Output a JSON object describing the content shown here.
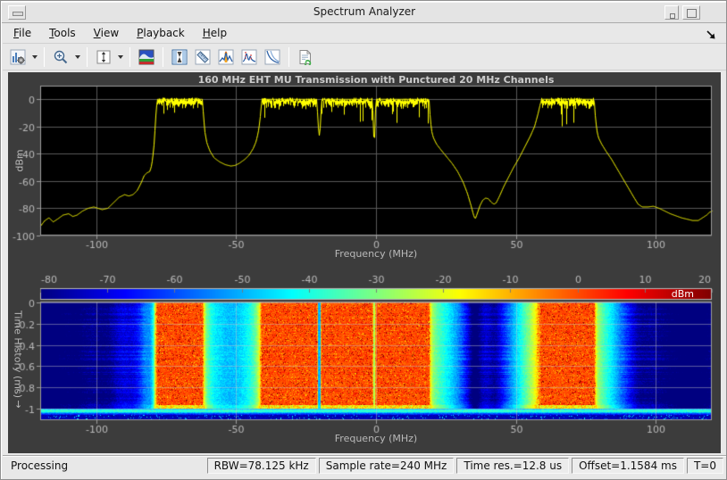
{
  "window": {
    "title": "Spectrum Analyzer"
  },
  "menubar": {
    "items": [
      {
        "label": "File",
        "mnemonic": 0
      },
      {
        "label": "Tools",
        "mnemonic": 0
      },
      {
        "label": "View",
        "mnemonic": 0
      },
      {
        "label": "Playback",
        "mnemonic": 0
      },
      {
        "label": "Help",
        "mnemonic": 0
      }
    ]
  },
  "toolbar": {
    "buttons": [
      {
        "name": "spectrum-settings",
        "has_dropdown": true
      },
      {
        "name": "zoom-in",
        "has_dropdown": true
      },
      {
        "name": "span",
        "has_dropdown": true
      },
      {
        "name": "spectrogram-view",
        "has_dropdown": false
      },
      {
        "name": "cursor-measurements",
        "has_dropdown": false
      },
      {
        "name": "ruler-measurements",
        "has_dropdown": false
      },
      {
        "name": "peak-finder",
        "has_dropdown": false
      },
      {
        "name": "distortion-measurements",
        "has_dropdown": false
      },
      {
        "name": "ccdf-measurements",
        "has_dropdown": false
      },
      {
        "name": "export-report",
        "has_dropdown": false
      }
    ]
  },
  "status": {
    "state": "Processing",
    "panels": [
      "RBW=78.125 kHz",
      "Sample rate=240 MHz",
      "Time res.=12.8 us",
      "Offset=1.1584 ms",
      "T=0"
    ]
  },
  "layout_colors": {
    "panel_bg": "#3c3c3c",
    "plot_bg": "#000000",
    "grid": "#5a5a5a",
    "axis_border": "#9c9c9c",
    "tick_label": "#b9b9b9",
    "trace": "#ffff00",
    "title_text": "#cccccc",
    "chrome_bg": "#e8e8e8"
  },
  "chart_data": [
    {
      "type": "line",
      "title": "160 MHz EHT MU Transmission with Punctured 20 MHz Channels",
      "xlabel": "Frequency (MHz)",
      "ylabel": "dBm",
      "xlim": [
        -120,
        120
      ],
      "ylim": [
        -100,
        10
      ],
      "xticks": [
        -100,
        -50,
        0,
        50,
        100
      ],
      "yticks": [
        0,
        -20,
        -40,
        -60,
        -80,
        -100
      ],
      "grid": true,
      "trace_color": "#ffff00",
      "noise_db": 3.5,
      "flat_segments": [
        [
          -78.3,
          -62.2
        ],
        [
          -41,
          -21.3
        ],
        [
          -19.6,
          -1.4
        ],
        [
          -0.2,
          18.8
        ],
        [
          59,
          77.8
        ]
      ],
      "envelope": [
        [
          -120,
          -93
        ],
        [
          -118.5,
          -89
        ],
        [
          -117,
          -87
        ],
        [
          -115.5,
          -90
        ],
        [
          -114,
          -88
        ],
        [
          -112,
          -85
        ],
        [
          -110,
          -84
        ],
        [
          -108.5,
          -86
        ],
        [
          -107,
          -85
        ],
        [
          -105,
          -82
        ],
        [
          -103,
          -80
        ],
        [
          -101,
          -79
        ],
        [
          -99.5,
          -80
        ],
        [
          -98,
          -81
        ],
        [
          -96,
          -80
        ],
        [
          -94,
          -76
        ],
        [
          -92,
          -72
        ],
        [
          -90,
          -70
        ],
        [
          -88.5,
          -71
        ],
        [
          -87,
          -70
        ],
        [
          -85.5,
          -67
        ],
        [
          -84,
          -61
        ],
        [
          -83,
          -56
        ],
        [
          -82,
          -54
        ],
        [
          -81,
          -53
        ],
        [
          -80.5,
          -50
        ],
        [
          -80,
          -44
        ],
        [
          -79.4,
          -32
        ],
        [
          -78.9,
          -14
        ],
        [
          -78.5,
          -4
        ],
        [
          -78.3,
          0
        ],
        [
          -62.2,
          0
        ],
        [
          -61.8,
          -12
        ],
        [
          -61.3,
          -24
        ],
        [
          -60.6,
          -32
        ],
        [
          -59.5,
          -38
        ],
        [
          -58,
          -43
        ],
        [
          -56,
          -46
        ],
        [
          -54,
          -48
        ],
        [
          -52,
          -49
        ],
        [
          -50.5,
          -48.5
        ],
        [
          -49,
          -47
        ],
        [
          -47,
          -44
        ],
        [
          -45.5,
          -41
        ],
        [
          -44,
          -36
        ],
        [
          -43,
          -31
        ],
        [
          -42.2,
          -24
        ],
        [
          -41.6,
          -15
        ],
        [
          -41.2,
          -6
        ],
        [
          -41,
          0
        ],
        [
          -21.3,
          0
        ],
        [
          -21,
          -12
        ],
        [
          -20.7,
          -22
        ],
        [
          -20.4,
          -27
        ],
        [
          -20.1,
          -21
        ],
        [
          -19.8,
          -10
        ],
        [
          -19.6,
          0
        ],
        [
          -1.4,
          0
        ],
        [
          -1.15,
          -16
        ],
        [
          -0.95,
          -28
        ],
        [
          -0.8,
          -37
        ],
        [
          -0.6,
          -26
        ],
        [
          -0.4,
          -12
        ],
        [
          -0.2,
          0
        ],
        [
          18.8,
          0
        ],
        [
          19.2,
          -13
        ],
        [
          19.7,
          -23
        ],
        [
          20.3,
          -28
        ],
        [
          21.5,
          -33
        ],
        [
          23,
          -37
        ],
        [
          25,
          -42
        ],
        [
          27,
          -47
        ],
        [
          29,
          -53
        ],
        [
          31,
          -61
        ],
        [
          32.5,
          -69
        ],
        [
          33.8,
          -78
        ],
        [
          34.7,
          -85
        ],
        [
          35.3,
          -88
        ],
        [
          36,
          -84
        ],
        [
          37,
          -78
        ],
        [
          38,
          -74
        ],
        [
          39,
          -72.5
        ],
        [
          40,
          -73
        ],
        [
          41,
          -75.5
        ],
        [
          42,
          -77
        ],
        [
          42.8,
          -76
        ],
        [
          44,
          -71
        ],
        [
          45.5,
          -64
        ],
        [
          47,
          -58
        ],
        [
          49,
          -50
        ],
        [
          51,
          -43
        ],
        [
          53,
          -35
        ],
        [
          55,
          -27
        ],
        [
          56.5,
          -20
        ],
        [
          57.7,
          -11
        ],
        [
          58.5,
          -4
        ],
        [
          59,
          0
        ],
        [
          77.8,
          0
        ],
        [
          78.2,
          -12
        ],
        [
          78.7,
          -22
        ],
        [
          79.3,
          -28
        ],
        [
          80.5,
          -33
        ],
        [
          82,
          -38
        ],
        [
          84,
          -44
        ],
        [
          86,
          -51
        ],
        [
          88,
          -58
        ],
        [
          90,
          -65
        ],
        [
          92,
          -72
        ],
        [
          93.5,
          -77
        ],
        [
          95,
          -79
        ],
        [
          97,
          -79
        ],
        [
          99,
          -78.5
        ],
        [
          101,
          -80
        ],
        [
          103,
          -82
        ],
        [
          105,
          -84
        ],
        [
          107,
          -85.5
        ],
        [
          109,
          -87
        ],
        [
          111,
          -88
        ],
        [
          113,
          -89
        ],
        [
          115,
          -89
        ],
        [
          116.5,
          -87
        ],
        [
          118,
          -85
        ],
        [
          119,
          -83
        ],
        [
          120,
          -82
        ]
      ]
    },
    {
      "type": "heatmap",
      "xlabel": "Frequency (MHz)",
      "ylabel": "Time History (ms)",
      "time_direction_arrow": "↓",
      "xlim": [
        -120,
        120
      ],
      "ylim": [
        0,
        -1.11
      ],
      "xticks": [
        -100,
        -50,
        0,
        50,
        100
      ],
      "yticks": [
        0,
        -0.2,
        -0.4,
        -0.6,
        -0.8,
        -1
      ],
      "grid": true,
      "colormap": "jet",
      "colorbar": {
        "ticks": [
          -80,
          -70,
          -60,
          -50,
          -40,
          -30,
          -20,
          -10,
          0,
          10,
          20
        ],
        "unit": "dBm",
        "range": [
          -80,
          20
        ]
      },
      "signal_start_ms": -1.0,
      "thin_lines": [
        {
          "f": -20.4,
          "level": -50
        },
        {
          "f": -0.8,
          "level": -25
        }
      ]
    }
  ]
}
